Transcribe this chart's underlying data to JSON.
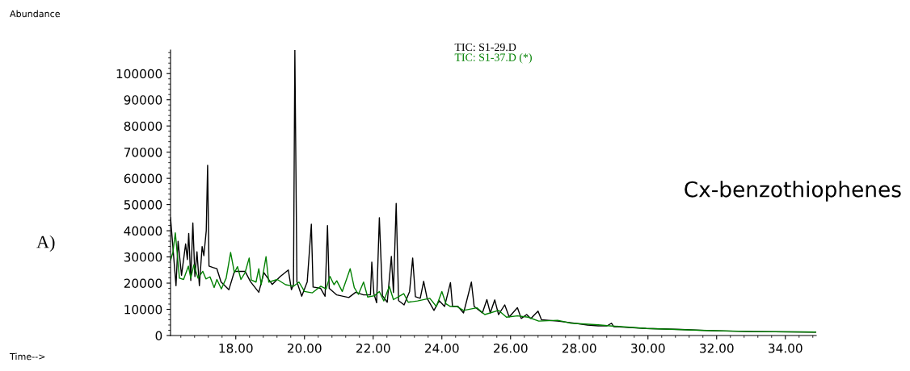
{
  "chart_data": {
    "type": "line",
    "annotations": [
      "A)",
      "Cx-benzothiophenes",
      "Abundance",
      "Time-->"
    ],
    "xlim": [
      16.1,
      34.9
    ],
    "ylim": [
      0,
      109000
    ],
    "xticks": [
      {
        "value": 18,
        "label": "18.00"
      },
      {
        "value": 20,
        "label": "20.00"
      },
      {
        "value": 22,
        "label": "22.00"
      },
      {
        "value": 24,
        "label": "24.00"
      },
      {
        "value": 26,
        "label": "26.00"
      },
      {
        "value": 28,
        "label": "28.00"
      },
      {
        "value": 30,
        "label": "30.00"
      },
      {
        "value": 32,
        "label": "32.00"
      },
      {
        "value": 34,
        "label": "34.00"
      }
    ],
    "yticks": [
      0,
      10000,
      20000,
      30000,
      40000,
      50000,
      60000,
      70000,
      80000,
      90000,
      100000
    ],
    "grid": false,
    "legend": "top",
    "marker": "none",
    "line_style": "solid",
    "series": [
      {
        "name": "TIC: S1-29.D",
        "color": "#000000",
        "x": [
          16.1,
          16.26,
          16.32,
          16.42,
          16.54,
          16.59,
          16.63,
          16.69,
          16.75,
          16.81,
          16.87,
          16.94,
          17.02,
          17.07,
          17.14,
          17.18,
          17.22,
          17.33,
          17.45,
          17.57,
          17.8,
          17.96,
          18.27,
          18.43,
          18.67,
          18.82,
          19.06,
          19.29,
          19.53,
          19.62,
          19.68,
          19.72,
          19.78,
          19.92,
          20.08,
          20.2,
          20.25,
          20.47,
          20.6,
          20.67,
          20.72,
          20.94,
          21.29,
          21.49,
          21.72,
          21.92,
          21.96,
          22.02,
          22.1,
          22.18,
          22.27,
          22.41,
          22.53,
          22.59,
          22.67,
          22.74,
          22.9,
          23.06,
          23.15,
          23.23,
          23.37,
          23.47,
          23.57,
          23.77,
          23.92,
          24.08,
          24.25,
          24.31,
          24.47,
          24.63,
          24.7,
          24.86,
          24.94,
          25.18,
          25.31,
          25.41,
          25.54,
          25.65,
          25.83,
          25.96,
          26.2,
          26.31,
          26.47,
          26.59,
          26.8,
          26.9,
          27.37,
          27.76,
          28.24,
          28.55,
          28.81,
          28.94,
          29.0,
          29.95,
          30.97,
          31.9,
          33.08,
          34.88
        ],
        "values": [
          45000,
          19000,
          36000,
          23000,
          35000,
          29000,
          39000,
          21000,
          43000,
          22500,
          32000,
          19000,
          34000,
          30500,
          40000,
          65000,
          26500,
          26000,
          25500,
          20500,
          17500,
          24500,
          24500,
          20500,
          16500,
          24000,
          19500,
          22500,
          25000,
          17500,
          19500,
          109000,
          20500,
          15000,
          20500,
          42500,
          18500,
          18000,
          15000,
          42000,
          18000,
          15500,
          14500,
          16500,
          15500,
          15500,
          28000,
          16000,
          12500,
          45000,
          15200,
          12700,
          30200,
          16400,
          50400,
          13300,
          11700,
          16800,
          29600,
          14800,
          14200,
          20700,
          14200,
          9600,
          13300,
          11100,
          20200,
          11100,
          11100,
          8600,
          12100,
          20400,
          11100,
          8600,
          13700,
          8600,
          13600,
          8000,
          11700,
          7100,
          10600,
          6500,
          8000,
          6500,
          9300,
          6000,
          5500,
          4900,
          4000,
          3700,
          3700,
          4700,
          3400,
          2700,
          2300,
          1800,
          1500,
          1300
        ]
      },
      {
        "name": "TIC: S1-37.D (*)",
        "color": "#008000",
        "x": [
          16.1,
          16.17,
          16.24,
          16.3,
          16.36,
          16.48,
          16.62,
          16.69,
          16.78,
          16.9,
          17.04,
          17.13,
          17.25,
          17.37,
          17.45,
          17.58,
          17.72,
          17.85,
          17.96,
          18.05,
          18.15,
          18.27,
          18.39,
          18.45,
          18.59,
          18.67,
          18.74,
          18.88,
          18.96,
          19.21,
          19.45,
          19.68,
          19.84,
          20.0,
          20.23,
          20.47,
          20.63,
          20.74,
          20.86,
          20.94,
          21.1,
          21.33,
          21.45,
          21.57,
          21.72,
          21.84,
          22.04,
          22.18,
          22.31,
          22.47,
          22.59,
          22.89,
          23.02,
          23.29,
          23.65,
          23.84,
          24.0,
          24.12,
          24.24,
          24.43,
          24.63,
          25.02,
          25.25,
          25.65,
          25.88,
          26.2,
          26.51,
          26.82,
          27.37,
          27.76,
          28.16,
          28.55,
          28.88,
          29.95,
          31.5,
          33.08,
          34.88
        ],
        "values": [
          28700,
          31800,
          39200,
          30600,
          21900,
          21400,
          26500,
          21900,
          27000,
          21900,
          24500,
          21600,
          22400,
          18300,
          21400,
          17800,
          21900,
          31700,
          24000,
          26300,
          21400,
          24000,
          29600,
          21200,
          20400,
          25500,
          19400,
          30100,
          20400,
          21400,
          19400,
          18800,
          20400,
          16800,
          16300,
          18800,
          17800,
          22600,
          19400,
          20900,
          16800,
          25500,
          18300,
          15700,
          20400,
          14700,
          15200,
          16800,
          13200,
          18800,
          13700,
          16000,
          12700,
          13200,
          14200,
          11100,
          16800,
          12100,
          11100,
          11100,
          9600,
          10600,
          8000,
          9600,
          7000,
          7500,
          7000,
          5500,
          5800,
          4700,
          4400,
          4100,
          3700,
          2700,
          2000,
          1500,
          1300
        ]
      }
    ]
  }
}
